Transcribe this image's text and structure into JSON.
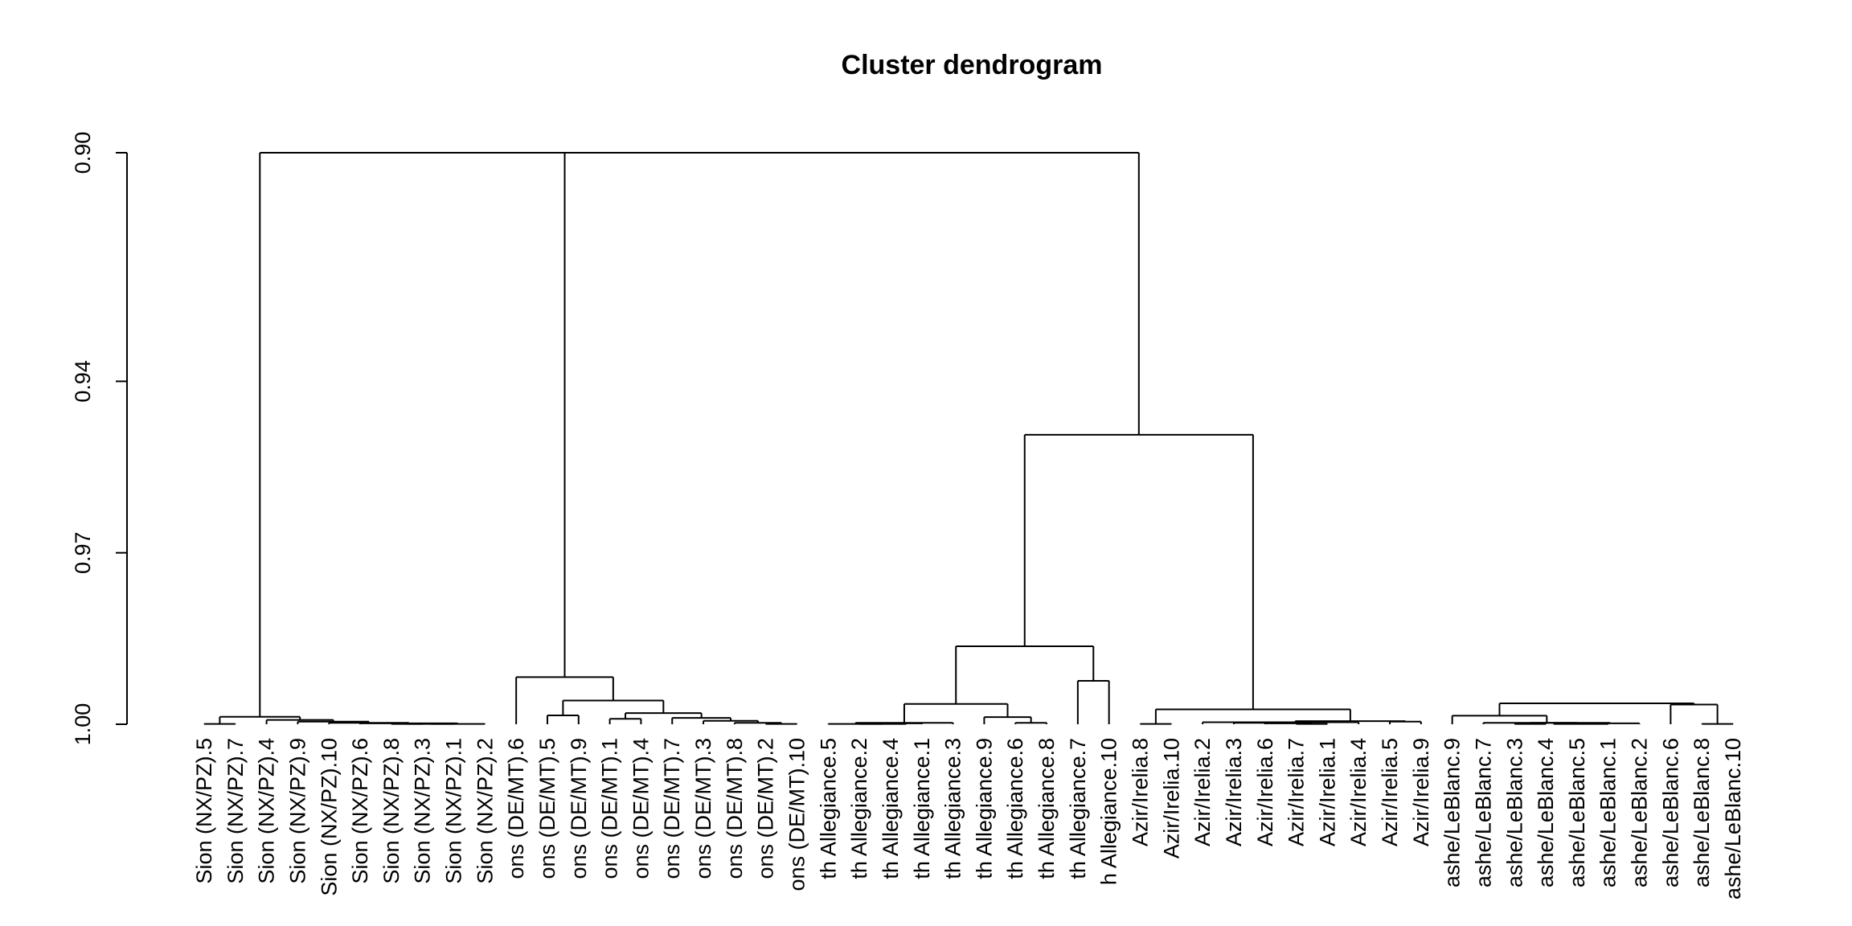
{
  "chart_data": {
    "type": "dendrogram",
    "title": "Cluster dendrogram",
    "xlabel": "",
    "ylabel": "",
    "yaxis": {
      "range": [
        0.89,
        1.0
      ],
      "reversed": true,
      "ticks": [
        0.9,
        0.94,
        0.97,
        1.0
      ],
      "tick_labels": [
        "0.90",
        "0.94",
        "0.97",
        "1.00"
      ]
    },
    "leaves": [
      "Sion (NX/PZ).5",
      "Sion (NX/PZ).7",
      "Sion (NX/PZ).4",
      "Sion (NX/PZ).9",
      "Sion (NX/PZ).10",
      "Sion (NX/PZ).6",
      "Sion (NX/PZ).8",
      "Sion (NX/PZ).3",
      "Sion (NX/PZ).1",
      "Sion (NX/PZ).2",
      "ons (DE/MT).6",
      "ons (DE/MT).5",
      "ons (DE/MT).9",
      "ons (DE/MT).1",
      "ons (DE/MT).4",
      "ons (DE/MT).7",
      "ons (DE/MT).3",
      "ons (DE/MT).8",
      "ons (DE/MT).2",
      "ons (DE/MT).10",
      "th Allegiance.5",
      "th Allegiance.2",
      "th Allegiance.4",
      "th Allegiance.1",
      "th Allegiance.3",
      "th Allegiance.9",
      "th Allegiance.6",
      "th Allegiance.8",
      "th Allegiance.7",
      "h Allegiance.10",
      "Azir/Irelia.8",
      "Azir/Irelia.10",
      "Azir/Irelia.2",
      "Azir/Irelia.3",
      "Azir/Irelia.6",
      "Azir/Irelia.7",
      "Azir/Irelia.1",
      "Azir/Irelia.4",
      "Azir/Irelia.5",
      "Azir/Irelia.9",
      "ashe/LeBlanc.9",
      "ashe/LeBlanc.7",
      "ashe/LeBlanc.3",
      "ashe/LeBlanc.4",
      "ashe/LeBlanc.5",
      "ashe/LeBlanc.1",
      "ashe/LeBlanc.2",
      "ashe/LeBlanc.6",
      "ashe/LeBlanc.8",
      "ashe/LeBlanc.10"
    ],
    "merges": [
      {
        "left": 7,
        "right": 8,
        "height": 0.99995
      },
      {
        "left": 8,
        "right": 9,
        "height": 0.99995
      },
      {
        "left": 9,
        "right": 10,
        "height": 0.99995
      },
      {
        "left": 6,
        "right": 7,
        "height": 0.99985
      },
      {
        "left": 5,
        "right": 6,
        "height": 0.99975
      },
      {
        "left": 4,
        "right": 5,
        "height": 0.99955
      },
      {
        "left": 3,
        "right": 4,
        "height": 0.99925
      },
      {
        "left": 1,
        "right": 2,
        "height": 0.99995
      },
      {
        "left": 2,
        "right": 3,
        "height": 0.9987
      },
      {
        "left": 19,
        "right": 20,
        "height": 0.99995
      },
      {
        "left": 18,
        "right": 19,
        "height": 0.99975
      },
      {
        "left": 17,
        "right": 18,
        "height": 0.9994
      },
      {
        "left": 16,
        "right": 17,
        "height": 0.9989
      },
      {
        "left": 14,
        "right": 15,
        "height": 0.99905
      },
      {
        "left": 15,
        "right": 16,
        "height": 0.99805
      },
      {
        "left": 12,
        "right": 13,
        "height": 0.99845
      },
      {
        "left": 13,
        "right": 14,
        "height": 0.99585
      },
      {
        "left": 11,
        "right": 12,
        "height": 0.99175
      },
      {
        "left": 23,
        "right": 24,
        "height": 0.99985
      },
      {
        "left": 22,
        "right": 23,
        "height": 0.99995
      },
      {
        "left": 21,
        "right": 22,
        "height": 0.99995
      },
      {
        "left": 24,
        "right": 25,
        "height": 0.99975
      },
      {
        "left": 27,
        "right": 28,
        "height": 0.99975
      },
      {
        "left": 26,
        "right": 27,
        "height": 0.99875
      },
      {
        "left": 25,
        "right": 26,
        "height": 0.99645
      },
      {
        "left": 29,
        "right": 30,
        "height": 0.9924
      },
      {
        "left": 28,
        "right": 29,
        "height": 0.98635
      },
      {
        "left": 36,
        "right": 37,
        "height": 0.99995
      },
      {
        "left": 35,
        "right": 36,
        "height": 0.99985
      },
      {
        "left": 34,
        "right": 35,
        "height": 0.99975
      },
      {
        "left": 33,
        "right": 34,
        "height": 0.99965
      },
      {
        "left": 37,
        "right": 38,
        "height": 0.99965
      },
      {
        "left": 39,
        "right": 40,
        "height": 0.99955
      },
      {
        "left": 38,
        "right": 39,
        "height": 0.99945
      },
      {
        "left": 31,
        "right": 32,
        "height": 0.99995
      },
      {
        "left": 32,
        "right": 33,
        "height": 0.9974
      },
      {
        "left": 43,
        "right": 44,
        "height": 0.99995
      },
      {
        "left": 44,
        "right": 45,
        "height": 0.99975
      },
      {
        "left": 45,
        "right": 46,
        "height": 0.99995
      },
      {
        "left": 46,
        "right": 47,
        "height": 0.99985
      },
      {
        "left": 42,
        "right": 43,
        "height": 0.99975
      },
      {
        "left": 41,
        "right": 42,
        "height": 0.9985
      },
      {
        "left": 49,
        "right": 50,
        "height": 0.99995
      },
      {
        "left": 48,
        "right": 49,
        "height": 0.99655
      },
      {
        "left": 47,
        "right": 48,
        "height": 0.99635
      },
      {
        "left": 30,
        "right": 40,
        "height": 0.94935
      },
      {
        "left": 21,
        "right": 30,
        "height": 0.95095
      },
      {
        "left": 11,
        "right": 21,
        "height": 0.9
      },
      {
        "left": 1,
        "right": 11,
        "height": 0.89
      }
    ],
    "grid": false,
    "legend": "none"
  }
}
